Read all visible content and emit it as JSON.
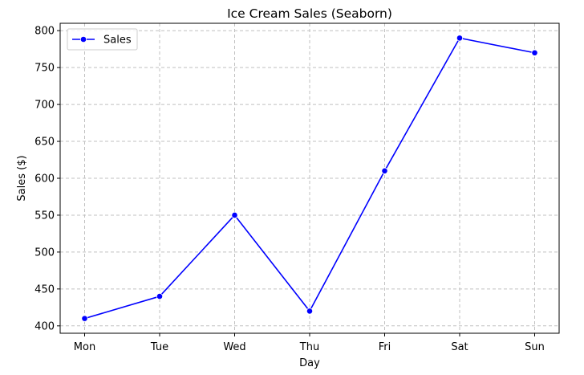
{
  "chart_data": {
    "type": "line",
    "title": "Ice Cream Sales (Seaborn)",
    "xlabel": "Day",
    "ylabel": "Sales ($)",
    "categories": [
      "Mon",
      "Tue",
      "Wed",
      "Thu",
      "Fri",
      "Sat",
      "Sun"
    ],
    "series": [
      {
        "name": "Sales",
        "values": [
          410,
          440,
          550,
          420,
          610,
          790,
          770
        ],
        "color": "#0000ff",
        "marker": "circle"
      }
    ],
    "ylim": [
      390,
      810
    ],
    "yticks": [
      400,
      450,
      500,
      550,
      600,
      650,
      700,
      750,
      800
    ],
    "grid": true,
    "grid_style": "dashed",
    "legend_position": "top-left"
  }
}
